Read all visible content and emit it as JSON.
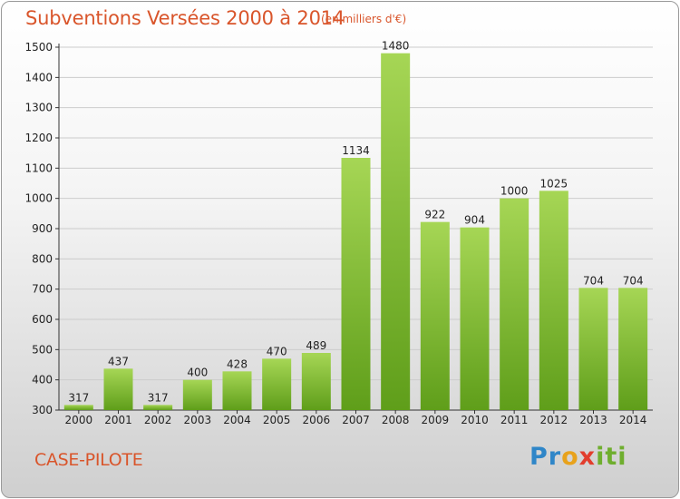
{
  "chart_data": {
    "type": "bar",
    "title": "Subventions Versées 2000 à 2014",
    "subtitle": "(en milliers d'€)",
    "categories": [
      "2000",
      "2001",
      "2002",
      "2003",
      "2004",
      "2005",
      "2006",
      "2007",
      "2008",
      "2009",
      "2010",
      "2011",
      "2012",
      "2013",
      "2014"
    ],
    "values": [
      317,
      437,
      317,
      400,
      428,
      470,
      489,
      1134,
      1480,
      922,
      904,
      1000,
      1025,
      704,
      704
    ],
    "ylim": [
      300,
      1500
    ],
    "yticks": [
      300,
      400,
      500,
      600,
      700,
      800,
      900,
      1000,
      1100,
      1200,
      1300,
      1400,
      1500
    ],
    "grid": true,
    "bar_color_top": "#a6d655",
    "bar_color_bottom": "#5f9e1a"
  },
  "footer": {
    "commune": "CASE-PILOTE",
    "logo_parts": [
      "Pr",
      "o",
      "x",
      "iti"
    ]
  },
  "colors": {
    "title": "#d9552b",
    "grid": "#cccccc"
  }
}
